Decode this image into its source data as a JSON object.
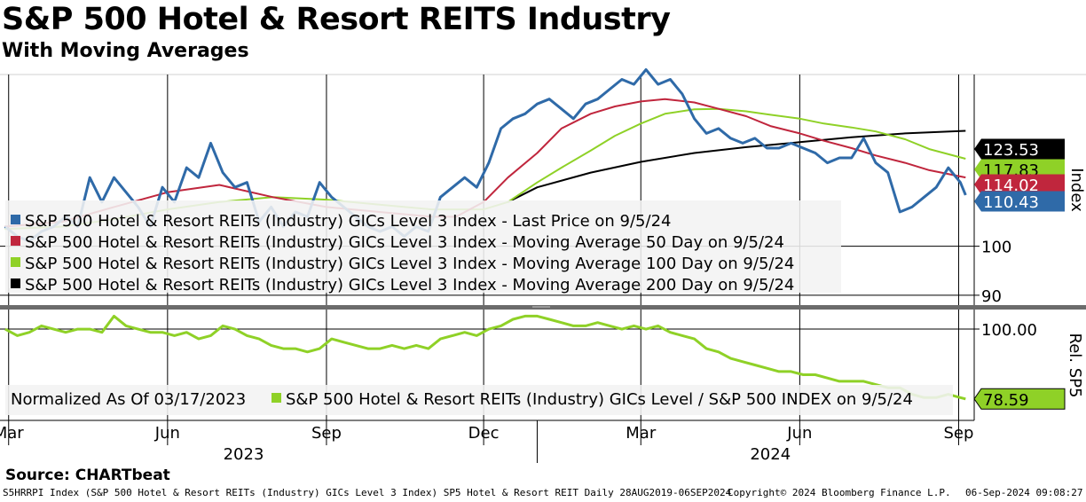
{
  "header": {
    "title": "S&P 500 Hotel & Resort REITS Industry",
    "subtitle": "With Moving Averages"
  },
  "source": "Source: CHARTbeat",
  "footer": {
    "ticker": "S5HRRPI Index (S&P 500 Hotel & Resort REITs (Industry) GICs Level 3 Index) SP5 Hotel & Resort REIT  Daily 28AUG2019-06SEP2024",
    "copyright": "Copyright© 2024 Bloomberg Finance L.P.",
    "timestamp": "06-Sep-2024 09:08:27"
  },
  "colors": {
    "last_price": "#2f6aa8",
    "ma50": "#c0263d",
    "ma100": "#8fd127",
    "ma200": "#000000",
    "relative": "#8fd127"
  },
  "chart_data": [
    {
      "type": "line",
      "panel": "upper",
      "ylabel": "Index",
      "ylim": [
        88,
        135
      ],
      "y_ticks": [
        90,
        100
      ],
      "x_date_range": [
        "2023-02-24",
        "2024-09-10"
      ],
      "x_month_ticks": [
        {
          "label": "Mar",
          "date": "2023-03-01"
        },
        {
          "label": "Jun",
          "date": "2023-06-01"
        },
        {
          "label": "Sep",
          "date": "2023-09-01"
        },
        {
          "label": "Dec",
          "date": "2023-12-01"
        },
        {
          "label": "Mar",
          "date": "2024-03-01"
        },
        {
          "label": "Jun",
          "date": "2024-06-01"
        },
        {
          "label": "Sep",
          "date": "2024-09-01"
        }
      ],
      "year_labels": [
        {
          "label": "2023",
          "date": "2023-07-15"
        },
        {
          "label": "2024",
          "date": "2024-05-15"
        }
      ],
      "legend": [
        "S&P 500 Hotel & Resort REITs (Industry) GICs Level 3 Index - Last Price on 9/5/24",
        "S&P 500 Hotel & Resort REITs (Industry) GICs Level 3 Index - Moving Average 50 Day on 9/5/24",
        "S&P 500 Hotel & Resort REITs (Industry) GICs Level 3 Index - Moving Average 100 Day on 9/5/24",
        "S&P 500 Hotel & Resort REITs (Industry) GICs Level 3 Index - Moving Average 200 Day on 9/5/24"
      ],
      "last_value_labels": [
        {
          "series": "ma200",
          "text": "123.53",
          "value": 123.53
        },
        {
          "series": "ma100",
          "text": "117.83",
          "value": 117.83
        },
        {
          "series": "ma50",
          "text": "114.02",
          "value": 114.02
        },
        {
          "series": "last_price",
          "text": "110.43",
          "value": 110.43
        }
      ],
      "series": [
        {
          "name": "Last Price",
          "key": "last_price",
          "dates": [
            "2023-02-27",
            "2023-03-06",
            "2023-03-13",
            "2023-03-20",
            "2023-03-27",
            "2023-04-03",
            "2023-04-10",
            "2023-04-17",
            "2023-04-24",
            "2023-05-01",
            "2023-05-08",
            "2023-05-15",
            "2023-05-22",
            "2023-05-29",
            "2023-06-05",
            "2023-06-12",
            "2023-06-19",
            "2023-06-26",
            "2023-07-03",
            "2023-07-10",
            "2023-07-17",
            "2023-07-24",
            "2023-07-31",
            "2023-08-07",
            "2023-08-14",
            "2023-08-21",
            "2023-08-28",
            "2023-09-04",
            "2023-09-11",
            "2023-09-18",
            "2023-09-25",
            "2023-10-02",
            "2023-10-09",
            "2023-10-16",
            "2023-10-23",
            "2023-10-30",
            "2023-11-06",
            "2023-11-13",
            "2023-11-20",
            "2023-11-27",
            "2023-12-04",
            "2023-12-11",
            "2023-12-18",
            "2023-12-25",
            "2024-01-01",
            "2024-01-08",
            "2024-01-15",
            "2024-01-22",
            "2024-01-29",
            "2024-02-05",
            "2024-02-12",
            "2024-02-19",
            "2024-02-26",
            "2024-03-04",
            "2024-03-11",
            "2024-03-18",
            "2024-03-25",
            "2024-04-01",
            "2024-04-08",
            "2024-04-15",
            "2024-04-22",
            "2024-04-29",
            "2024-05-06",
            "2024-05-13",
            "2024-05-20",
            "2024-05-27",
            "2024-06-03",
            "2024-06-10",
            "2024-06-17",
            "2024-06-24",
            "2024-07-01",
            "2024-07-08",
            "2024-07-15",
            "2024-07-22",
            "2024-07-29",
            "2024-08-05",
            "2024-08-12",
            "2024-08-19",
            "2024-08-26",
            "2024-09-02",
            "2024-09-05"
          ],
          "values": [
            104,
            102,
            101,
            103,
            104,
            106,
            104,
            114,
            109,
            114,
            111,
            108,
            104,
            112,
            109,
            116,
            114,
            121,
            115,
            112,
            113,
            105,
            108,
            104,
            107,
            106,
            113,
            110,
            108,
            106,
            104,
            103,
            104,
            102,
            104,
            103,
            110,
            112,
            114,
            112,
            117,
            124,
            126,
            127,
            129,
            130,
            128,
            126,
            129,
            130,
            132,
            134,
            133,
            136,
            133,
            134,
            131,
            126,
            123,
            124,
            122,
            121,
            122,
            120,
            120,
            121,
            120,
            119,
            117,
            118,
            118,
            122,
            117,
            115,
            107,
            108,
            110,
            112,
            116,
            113,
            110.43
          ]
        },
        {
          "name": "Moving Average 50 Day",
          "key": "ma50",
          "dates": [
            "2023-02-27",
            "2023-04-01",
            "2023-05-01",
            "2023-06-01",
            "2023-07-01",
            "2023-08-01",
            "2023-09-01",
            "2023-10-01",
            "2023-11-01",
            "2023-11-15",
            "2023-12-01",
            "2023-12-15",
            "2024-01-01",
            "2024-01-15",
            "2024-02-01",
            "2024-02-15",
            "2024-03-01",
            "2024-03-15",
            "2024-04-01",
            "2024-04-15",
            "2024-05-01",
            "2024-05-15",
            "2024-06-01",
            "2024-06-15",
            "2024-07-01",
            "2024-07-15",
            "2024-08-01",
            "2024-08-15",
            "2024-09-05"
          ],
          "values": [
            104,
            105,
            108,
            111,
            112.5,
            110,
            108,
            107,
            106,
            106,
            109,
            114,
            119,
            124,
            127,
            128.5,
            129.5,
            130,
            129.3,
            128,
            126.5,
            124.5,
            123,
            121.5,
            120,
            118.5,
            117,
            115.5,
            114.02
          ]
        },
        {
          "name": "Moving Average 100 Day",
          "key": "ma100",
          "dates": [
            "2023-02-27",
            "2023-04-01",
            "2023-05-01",
            "2023-06-01",
            "2023-07-01",
            "2023-08-01",
            "2023-09-01",
            "2023-10-01",
            "2023-11-01",
            "2023-12-01",
            "2023-12-15",
            "2024-01-01",
            "2024-01-15",
            "2024-02-01",
            "2024-02-15",
            "2024-03-01",
            "2024-03-15",
            "2024-04-01",
            "2024-04-15",
            "2024-05-01",
            "2024-05-15",
            "2024-06-01",
            "2024-06-15",
            "2024-07-01",
            "2024-07-15",
            "2024-08-01",
            "2024-08-15",
            "2024-09-05"
          ],
          "values": [
            103.5,
            104,
            105.5,
            107.5,
            109,
            110,
            109.5,
            108.5,
            107.5,
            107.5,
            109,
            113,
            116,
            119.5,
            122.5,
            125,
            127,
            127.9,
            128,
            127.5,
            126.8,
            126,
            125,
            124.2,
            123.4,
            121.8,
            119.8,
            117.83
          ]
        },
        {
          "name": "Moving Average 200 Day",
          "key": "ma200",
          "dates": [
            "2023-12-15",
            "2024-01-01",
            "2024-02-01",
            "2024-03-01",
            "2024-04-01",
            "2024-05-01",
            "2024-06-01",
            "2024-07-01",
            "2024-08-01",
            "2024-09-05"
          ],
          "values": [
            109,
            112,
            115,
            117.2,
            119,
            120.2,
            121.2,
            122.2,
            123,
            123.53
          ]
        }
      ]
    },
    {
      "type": "line",
      "panel": "lower",
      "ylabel": "Rel. SP5",
      "ylim": [
        72,
        106
      ],
      "y_ticks": [
        100
      ],
      "y_tick_labels": [
        "100.00"
      ],
      "legend_prefix": "Normalized As Of 03/17/2023",
      "legend": [
        "S&P 500 Hotel & Resort REITs (Industry) GICs Level / S&P 500 INDEX on 9/5/24"
      ],
      "last_value_labels": [
        {
          "series": "relative",
          "text": "78.59",
          "value": 78.59
        }
      ],
      "series": [
        {
          "name": "S&P 500 Hotel & Resort REITs (Industry) GICs Level / S&P 500 INDEX",
          "key": "relative",
          "dates": [
            "2023-02-27",
            "2023-03-06",
            "2023-03-13",
            "2023-03-20",
            "2023-03-27",
            "2023-04-03",
            "2023-04-10",
            "2023-04-17",
            "2023-04-24",
            "2023-05-01",
            "2023-05-08",
            "2023-05-15",
            "2023-05-22",
            "2023-05-29",
            "2023-06-05",
            "2023-06-12",
            "2023-06-19",
            "2023-06-26",
            "2023-07-03",
            "2023-07-10",
            "2023-07-17",
            "2023-07-24",
            "2023-07-31",
            "2023-08-07",
            "2023-08-14",
            "2023-08-21",
            "2023-08-28",
            "2023-09-04",
            "2023-09-11",
            "2023-09-18",
            "2023-09-25",
            "2023-10-02",
            "2023-10-09",
            "2023-10-16",
            "2023-10-23",
            "2023-10-30",
            "2023-11-06",
            "2023-11-13",
            "2023-11-20",
            "2023-11-27",
            "2023-12-04",
            "2023-12-11",
            "2023-12-18",
            "2023-12-25",
            "2024-01-01",
            "2024-01-08",
            "2024-01-15",
            "2024-01-22",
            "2024-01-29",
            "2024-02-05",
            "2024-02-12",
            "2024-02-19",
            "2024-02-26",
            "2024-03-04",
            "2024-03-11",
            "2024-03-18",
            "2024-03-25",
            "2024-04-01",
            "2024-04-08",
            "2024-04-15",
            "2024-04-22",
            "2024-04-29",
            "2024-05-06",
            "2024-05-13",
            "2024-05-20",
            "2024-05-27",
            "2024-06-03",
            "2024-06-10",
            "2024-06-17",
            "2024-06-24",
            "2024-07-01",
            "2024-07-08",
            "2024-07-15",
            "2024-07-22",
            "2024-07-29",
            "2024-08-05",
            "2024-08-12",
            "2024-08-19",
            "2024-08-26",
            "2024-09-02",
            "2024-09-05"
          ],
          "values": [
            100,
            98,
            99,
            101,
            100,
            99,
            100,
            100,
            99,
            104,
            101,
            100,
            99,
            99,
            98,
            99,
            97,
            98,
            101,
            100,
            98,
            97,
            95,
            94,
            94,
            93,
            94,
            97,
            96,
            95,
            94,
            94,
            95,
            94,
            95,
            94,
            97,
            98,
            99,
            98,
            100,
            101,
            103,
            104,
            104,
            103,
            102,
            101,
            101,
            102,
            101,
            100,
            101,
            100,
            101,
            99,
            98,
            97,
            94,
            93,
            91,
            90,
            89,
            88,
            87,
            87,
            86,
            86,
            85,
            84,
            84,
            84,
            83,
            82,
            82,
            80,
            79,
            79,
            80,
            79,
            78.59
          ]
        }
      ]
    }
  ]
}
